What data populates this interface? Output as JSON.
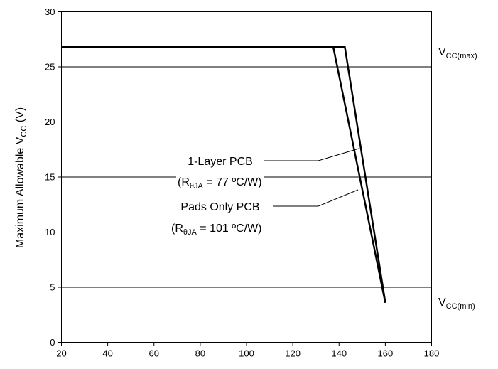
{
  "chart_data": {
    "type": "line",
    "title": "",
    "xlabel": "",
    "ylabel": {
      "prefix": "Maximum Allowable V",
      "subscript": "CC",
      "suffix": " (V)"
    },
    "xlim": [
      20,
      180
    ],
    "ylim": [
      0,
      30
    ],
    "x_ticks": [
      20,
      40,
      60,
      80,
      100,
      120,
      140,
      160,
      180
    ],
    "y_ticks": [
      0,
      5,
      10,
      15,
      20,
      25,
      30
    ],
    "grid": "horizontal",
    "series": [
      {
        "name": "1-Layer PCB",
        "x": [
          20,
          142.5,
          160
        ],
        "y": [
          26.8,
          26.8,
          3.6
        ]
      },
      {
        "name": "Pads Only PCB",
        "x": [
          20,
          137.5,
          160
        ],
        "y": [
          26.8,
          26.8,
          3.6
        ]
      }
    ],
    "annotations": {
      "vcc_max": {
        "main": "V",
        "sub": "CC(max)"
      },
      "vcc_min": {
        "main": "V",
        "sub": "CC(min)"
      },
      "layer1": {
        "line1": "1-Layer PCB",
        "r": "(R",
        "r_sub": "θJA",
        "r_rest": " = 77 ºC/W)"
      },
      "pads": {
        "line1": "Pads Only PCB",
        "r": "(R",
        "r_sub": "θJA",
        "r_rest": " = 101 ºC/W)"
      }
    }
  }
}
